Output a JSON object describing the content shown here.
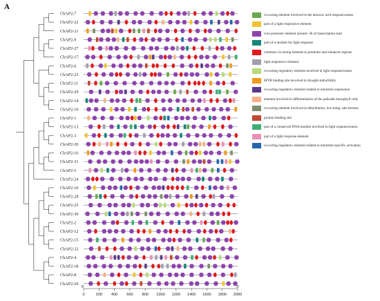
{
  "panel_letter": "A",
  "genes": [
    "ChAP2-7",
    "ChAP2-22",
    "ChAP2-21",
    "ChAP2-9",
    "ChAP2-27",
    "ChAP2-17",
    "ChAP2-6",
    "ChAP2-23",
    "ChAP2-11",
    "ChAP2-29",
    "ChAP2-14",
    "ChAP2-19",
    "ChAP2-1",
    "ChAP2-13",
    "ChAP2-3",
    "ChAP2-20",
    "ChAP2-16",
    "ChAP2-31",
    "ChAP2-5",
    "ChAP2-24",
    "ChAP2-10",
    "ChAP2-28",
    "ChAP2-25",
    "ChAP2-30",
    "ChAP2-2",
    "ChAP2-12",
    "ChAP2-15",
    "ChAP2-32",
    "ChAP2-4",
    "ChAP2-18",
    "ChAP2-8",
    "ChAP2-26"
  ],
  "axis": {
    "start_label": "5'",
    "end_label": "3'",
    "min": 0,
    "max": 2000,
    "ticks": [
      0,
      200,
      400,
      600,
      800,
      1000,
      1200,
      1400,
      1600,
      1800,
      2000
    ]
  },
  "legend": [
    {
      "label": "cis-acting element involved in the abscisic acid responsiveness",
      "color": "#6aa84f",
      "shape": "rect"
    },
    {
      "label": "part of a light responsive element",
      "color": "#f1c232",
      "shape": "rect"
    },
    {
      "label": "core promoter element around -30 of transcription start",
      "color": "#8e44ad",
      "shape": "hex"
    },
    {
      "label": "part of a module for light response",
      "color": "#16867a",
      "shape": "rect"
    },
    {
      "label": "common cis-acting element in promoter and enhancer regions",
      "color": "#e0191f",
      "shape": "oval"
    },
    {
      "label": "light responsive element",
      "color": "#9fa0ad",
      "shape": "rect"
    },
    {
      "label": "cis-acting regulatory element involved in light responsiveness",
      "color": "#b7d97a",
      "shape": "rect"
    },
    {
      "label": "MYB binding site involved in drought-inducibility",
      "color": "#ef9a1c",
      "shape": "rect"
    },
    {
      "label": "cis-acting regulatory element related to meristem expression",
      "color": "#5b3a8c",
      "shape": "rect"
    },
    {
      "label": "element involved in differentiation of the palisade mesophyll cells",
      "color": "#f5b28a",
      "shape": "rect"
    },
    {
      "label": "cis-acting element involved in dehydration, low-temp, salt stresses",
      "color": "#7d8f6b",
      "shape": "rect"
    },
    {
      "label": "protein binding site",
      "color": "#c2492f",
      "shape": "rect"
    },
    {
      "label": "part of a conserved DNA module involved in light responsiveness",
      "color": "#3fae74",
      "shape": "rect"
    },
    {
      "label": "part of a light response element",
      "color": "#e891b5",
      "shape": "rect"
    },
    {
      "label": "cis-acting regulatory element related to meristem specific activation",
      "color": "#2566b0",
      "shape": "rect"
    }
  ]
}
